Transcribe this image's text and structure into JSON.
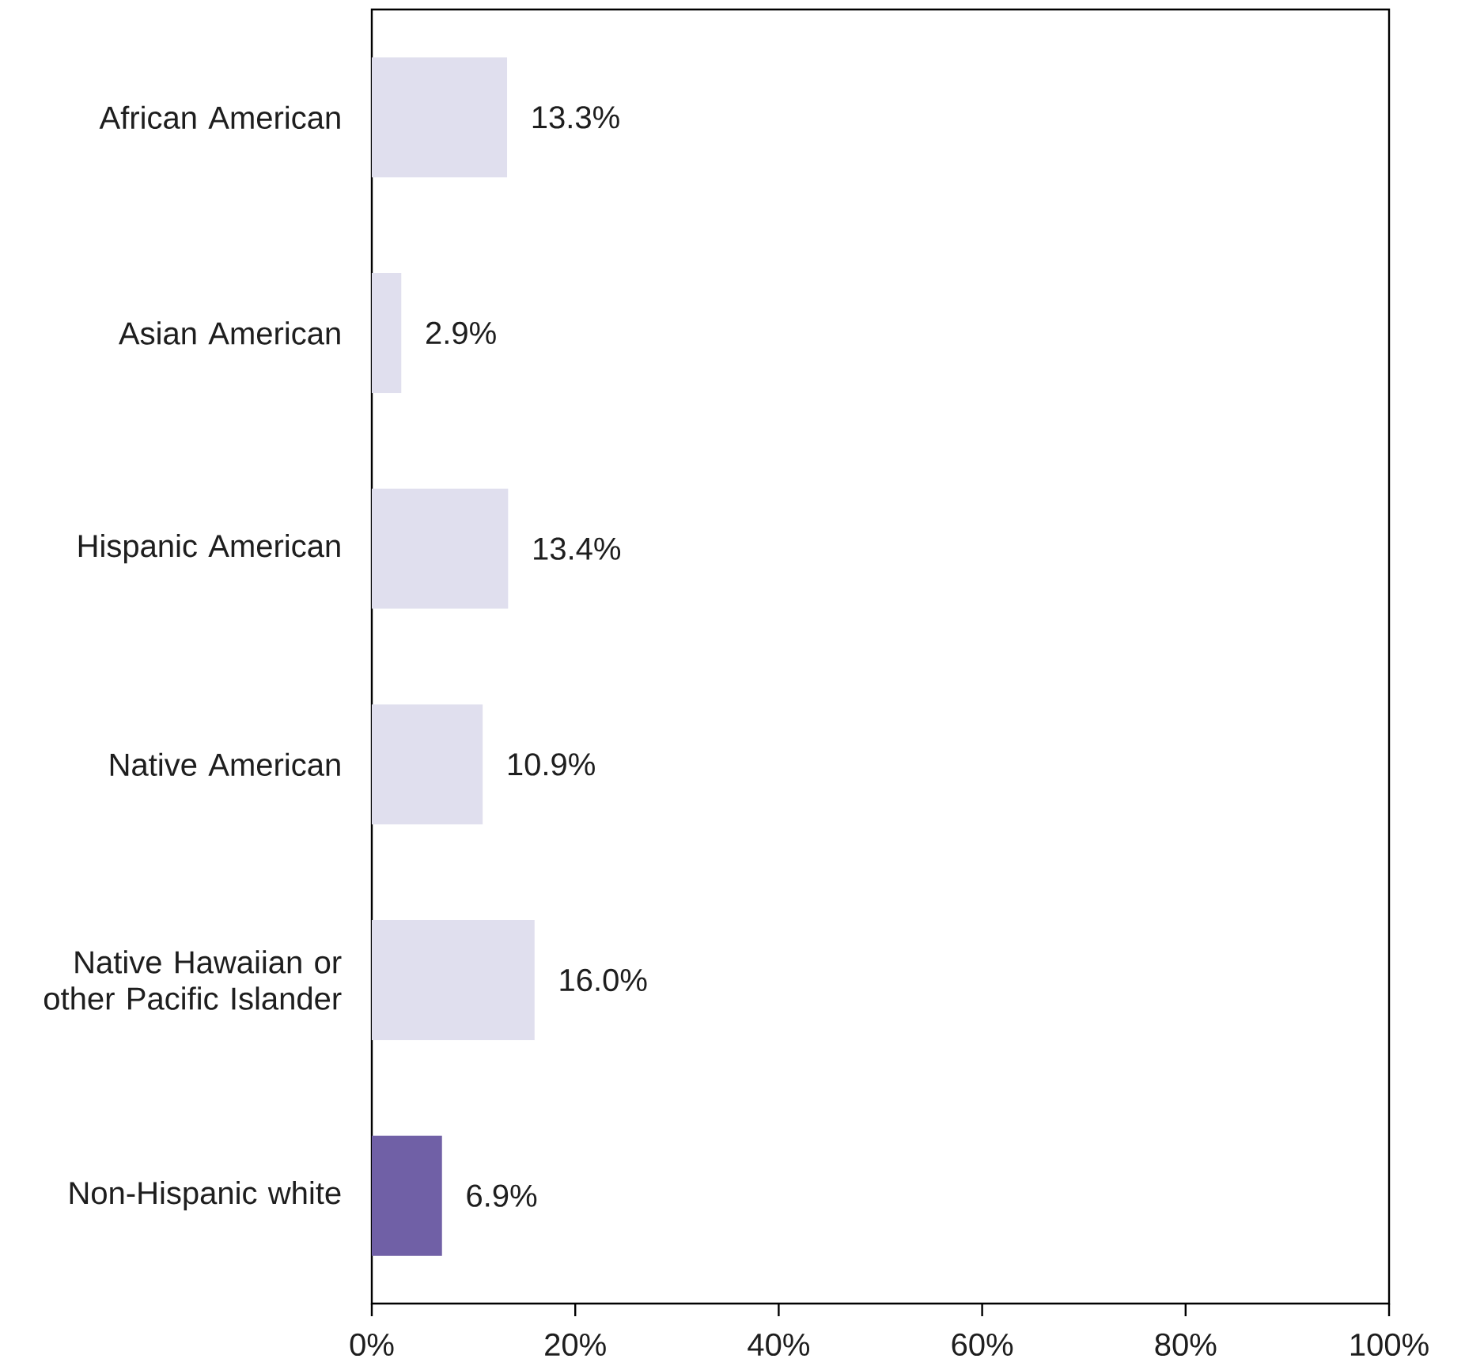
{
  "chart_data": {
    "type": "bar",
    "orientation": "horizontal",
    "categories": [
      "African American",
      "Asian American",
      "Hispanic American",
      "Native American",
      "Native Hawaiian or other Pacific Islander",
      "Non-Hispanic white"
    ],
    "values": [
      13.3,
      2.9,
      13.4,
      10.9,
      16.0,
      6.9
    ],
    "colors": [
      "#e0dfee",
      "#e0dfee",
      "#e0dfee",
      "#e0dfee",
      "#e0dfee",
      "#7060a6"
    ],
    "value_labels": [
      "13.3%",
      "2.9%",
      "13.4%",
      "10.9%",
      "16.0%",
      "6.9%"
    ],
    "xlim": [
      0,
      100
    ],
    "xticks": [
      {
        "value": 0,
        "label": "0%"
      },
      {
        "value": 20,
        "label": "20%"
      },
      {
        "value": 40,
        "label": "40%"
      },
      {
        "value": 60,
        "label": "60%"
      },
      {
        "value": 80,
        "label": "80%"
      },
      {
        "value": 100,
        "label": "100%"
      }
    ]
  }
}
